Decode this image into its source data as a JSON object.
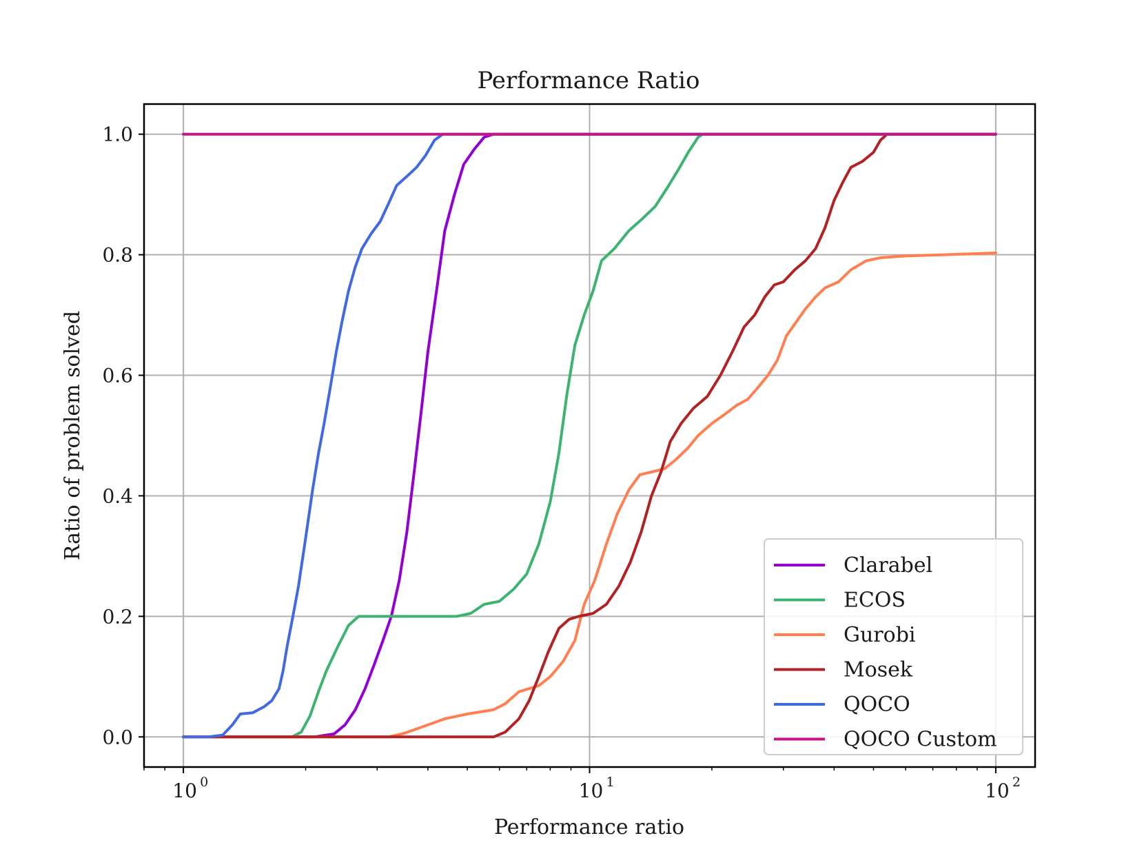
{
  "chart_data": {
    "type": "line",
    "title": "Performance Ratio",
    "xlabel": "Performance ratio",
    "ylabel": "Ratio of problem solved",
    "xscale": "log",
    "xlim": [
      0.8,
      125
    ],
    "ylim": [
      -0.05,
      1.05
    ],
    "grid": true,
    "legend_position": "lower-right",
    "x_ticks": [
      {
        "value": 1,
        "base": "10",
        "exp": "0"
      },
      {
        "value": 10,
        "base": "10",
        "exp": "1"
      },
      {
        "value": 100,
        "base": "10",
        "exp": "2"
      }
    ],
    "y_ticks": [
      {
        "value": 0.0,
        "label": "0.0"
      },
      {
        "value": 0.2,
        "label": "0.2"
      },
      {
        "value": 0.4,
        "label": "0.4"
      },
      {
        "value": 0.6,
        "label": "0.6"
      },
      {
        "value": 0.8,
        "label": "0.8"
      },
      {
        "value": 1.0,
        "label": "1.0"
      }
    ],
    "series": [
      {
        "name": "Clarabel",
        "color": "#9400d3",
        "points": [
          [
            1.0,
            0.0
          ],
          [
            2.1,
            0.0
          ],
          [
            2.35,
            0.005
          ],
          [
            2.5,
            0.02
          ],
          [
            2.65,
            0.045
          ],
          [
            2.8,
            0.08
          ],
          [
            2.95,
            0.12
          ],
          [
            3.1,
            0.16
          ],
          [
            3.25,
            0.2
          ],
          [
            3.4,
            0.26
          ],
          [
            3.55,
            0.34
          ],
          [
            3.7,
            0.44
          ],
          [
            3.85,
            0.54
          ],
          [
            4.0,
            0.64
          ],
          [
            4.2,
            0.74
          ],
          [
            4.4,
            0.84
          ],
          [
            4.65,
            0.9
          ],
          [
            4.9,
            0.95
          ],
          [
            5.2,
            0.975
          ],
          [
            5.5,
            0.995
          ],
          [
            5.8,
            1.0
          ],
          [
            100.0,
            1.0
          ]
        ]
      },
      {
        "name": "ECOS",
        "color": "#3cb371",
        "points": [
          [
            1.0,
            0.0
          ],
          [
            1.85,
            0.0
          ],
          [
            1.95,
            0.008
          ],
          [
            2.05,
            0.035
          ],
          [
            2.15,
            0.075
          ],
          [
            2.25,
            0.11
          ],
          [
            2.4,
            0.15
          ],
          [
            2.55,
            0.185
          ],
          [
            2.7,
            0.2
          ],
          [
            3.5,
            0.2
          ],
          [
            4.7,
            0.2
          ],
          [
            5.1,
            0.205
          ],
          [
            5.5,
            0.22
          ],
          [
            6.0,
            0.225
          ],
          [
            6.5,
            0.245
          ],
          [
            7.0,
            0.27
          ],
          [
            7.5,
            0.32
          ],
          [
            8.0,
            0.39
          ],
          [
            8.4,
            0.47
          ],
          [
            8.8,
            0.57
          ],
          [
            9.2,
            0.65
          ],
          [
            9.7,
            0.7
          ],
          [
            10.2,
            0.74
          ],
          [
            10.7,
            0.79
          ],
          [
            11.5,
            0.81
          ],
          [
            12.5,
            0.84
          ],
          [
            13.5,
            0.86
          ],
          [
            14.5,
            0.88
          ],
          [
            15.5,
            0.91
          ],
          [
            16.5,
            0.94
          ],
          [
            17.5,
            0.97
          ],
          [
            18.5,
            0.995
          ],
          [
            19.0,
            1.0
          ],
          [
            100.0,
            1.0
          ]
        ]
      },
      {
        "name": "Gurobi",
        "color": "#ff7f50",
        "points": [
          [
            1.0,
            0.0
          ],
          [
            3.2,
            0.0
          ],
          [
            3.5,
            0.006
          ],
          [
            4.0,
            0.02
          ],
          [
            4.4,
            0.03
          ],
          [
            5.0,
            0.038
          ],
          [
            5.8,
            0.045
          ],
          [
            6.2,
            0.055
          ],
          [
            6.7,
            0.075
          ],
          [
            7.5,
            0.085
          ],
          [
            8.0,
            0.1
          ],
          [
            8.6,
            0.125
          ],
          [
            9.2,
            0.16
          ],
          [
            9.7,
            0.22
          ],
          [
            10.3,
            0.26
          ],
          [
            11.0,
            0.32
          ],
          [
            11.7,
            0.37
          ],
          [
            12.5,
            0.41
          ],
          [
            13.3,
            0.435
          ],
          [
            14.3,
            0.44
          ],
          [
            15.3,
            0.445
          ],
          [
            16.3,
            0.46
          ],
          [
            17.5,
            0.48
          ],
          [
            18.5,
            0.5
          ],
          [
            20.0,
            0.52
          ],
          [
            21.5,
            0.535
          ],
          [
            23.0,
            0.55
          ],
          [
            24.5,
            0.56
          ],
          [
            26.0,
            0.58
          ],
          [
            27.5,
            0.6
          ],
          [
            29.0,
            0.625
          ],
          [
            30.5,
            0.665
          ],
          [
            32.0,
            0.685
          ],
          [
            34.0,
            0.71
          ],
          [
            36.0,
            0.73
          ],
          [
            38.0,
            0.745
          ],
          [
            41.0,
            0.755
          ],
          [
            44.0,
            0.775
          ],
          [
            48.0,
            0.79
          ],
          [
            52.0,
            0.795
          ],
          [
            60.0,
            0.798
          ],
          [
            75.0,
            0.8
          ],
          [
            100.0,
            0.803
          ]
        ]
      },
      {
        "name": "Mosek",
        "color": "#b22222",
        "points": [
          [
            1.0,
            0.0
          ],
          [
            5.8,
            0.0
          ],
          [
            6.2,
            0.008
          ],
          [
            6.7,
            0.03
          ],
          [
            7.1,
            0.06
          ],
          [
            7.5,
            0.1
          ],
          [
            7.9,
            0.14
          ],
          [
            8.4,
            0.18
          ],
          [
            8.9,
            0.195
          ],
          [
            9.4,
            0.2
          ],
          [
            10.2,
            0.205
          ],
          [
            11.0,
            0.22
          ],
          [
            11.8,
            0.25
          ],
          [
            12.6,
            0.29
          ],
          [
            13.4,
            0.34
          ],
          [
            14.2,
            0.4
          ],
          [
            15.0,
            0.44
          ],
          [
            15.8,
            0.49
          ],
          [
            16.8,
            0.52
          ],
          [
            18.0,
            0.545
          ],
          [
            19.5,
            0.565
          ],
          [
            21.0,
            0.6
          ],
          [
            22.5,
            0.64
          ],
          [
            24.0,
            0.68
          ],
          [
            25.5,
            0.7
          ],
          [
            27.0,
            0.73
          ],
          [
            28.5,
            0.75
          ],
          [
            30.0,
            0.755
          ],
          [
            32.0,
            0.775
          ],
          [
            34.0,
            0.79
          ],
          [
            36.0,
            0.81
          ],
          [
            38.0,
            0.845
          ],
          [
            40.0,
            0.89
          ],
          [
            42.0,
            0.92
          ],
          [
            44.0,
            0.945
          ],
          [
            47.0,
            0.955
          ],
          [
            50.0,
            0.97
          ],
          [
            52.0,
            0.99
          ],
          [
            54.0,
            1.0
          ],
          [
            100.0,
            1.0
          ]
        ]
      },
      {
        "name": "QOCO",
        "color": "#4169e1",
        "points": [
          [
            1.0,
            0.0
          ],
          [
            1.15,
            0.0
          ],
          [
            1.25,
            0.003
          ],
          [
            1.32,
            0.02
          ],
          [
            1.38,
            0.038
          ],
          [
            1.48,
            0.04
          ],
          [
            1.58,
            0.05
          ],
          [
            1.65,
            0.06
          ],
          [
            1.72,
            0.08
          ],
          [
            1.76,
            0.11
          ],
          [
            1.8,
            0.15
          ],
          [
            1.86,
            0.2
          ],
          [
            1.92,
            0.25
          ],
          [
            2.0,
            0.33
          ],
          [
            2.08,
            0.41
          ],
          [
            2.15,
            0.47
          ],
          [
            2.22,
            0.52
          ],
          [
            2.3,
            0.58
          ],
          [
            2.38,
            0.64
          ],
          [
            2.46,
            0.69
          ],
          [
            2.55,
            0.74
          ],
          [
            2.65,
            0.78
          ],
          [
            2.75,
            0.81
          ],
          [
            2.9,
            0.835
          ],
          [
            3.05,
            0.855
          ],
          [
            3.2,
            0.885
          ],
          [
            3.35,
            0.915
          ],
          [
            3.55,
            0.93
          ],
          [
            3.75,
            0.945
          ],
          [
            3.95,
            0.965
          ],
          [
            4.15,
            0.99
          ],
          [
            4.35,
            1.0
          ],
          [
            100.0,
            1.0
          ]
        ]
      },
      {
        "name": "QOCO Custom",
        "color": "#c71585",
        "points": [
          [
            1.0,
            1.0
          ],
          [
            100.0,
            1.0
          ]
        ]
      }
    ]
  }
}
